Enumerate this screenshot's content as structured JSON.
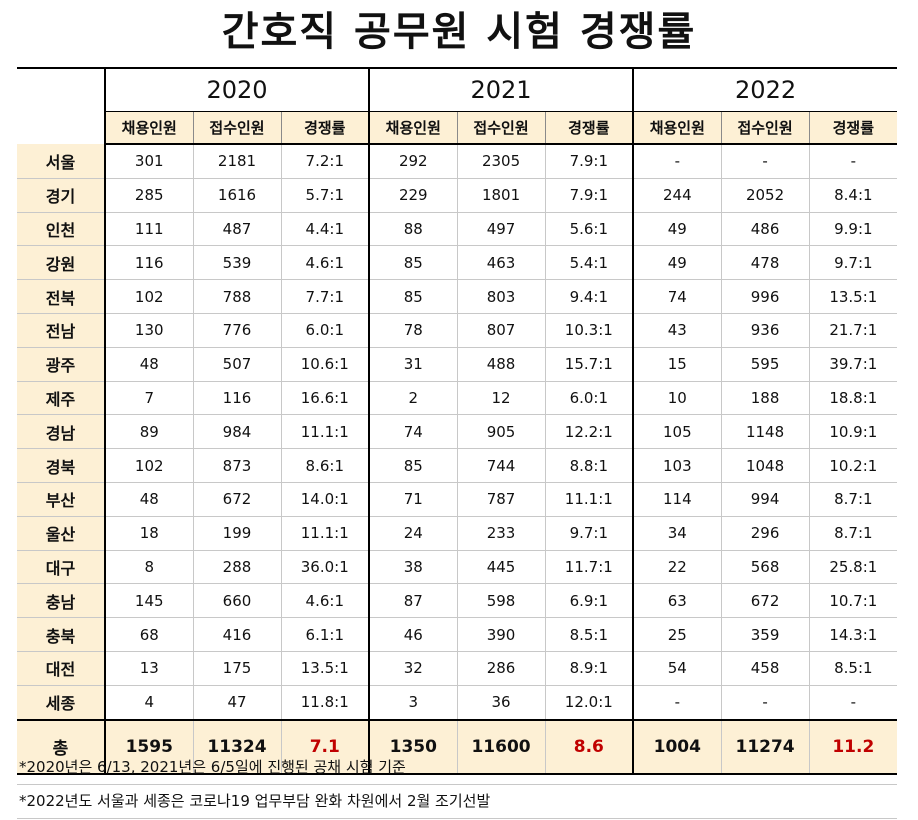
{
  "title": "간호직 공무원 시험 경쟁률",
  "years": [
    "2020",
    "2021",
    "2022"
  ],
  "columns": [
    "채용인원",
    "접수인원",
    "경쟁률"
  ],
  "rows": [
    {
      "region": "서울",
      "values": [
        "301",
        "2181",
        "7.2:1",
        "292",
        "2305",
        "7.9:1",
        "-",
        "-",
        "-"
      ]
    },
    {
      "region": "경기",
      "values": [
        "285",
        "1616",
        "5.7:1",
        "229",
        "1801",
        "7.9:1",
        "244",
        "2052",
        "8.4:1"
      ]
    },
    {
      "region": "인천",
      "values": [
        "111",
        "487",
        "4.4:1",
        "88",
        "497",
        "5.6:1",
        "49",
        "486",
        "9.9:1"
      ]
    },
    {
      "region": "강원",
      "values": [
        "116",
        "539",
        "4.6:1",
        "85",
        "463",
        "5.4:1",
        "49",
        "478",
        "9.7:1"
      ]
    },
    {
      "region": "전북",
      "values": [
        "102",
        "788",
        "7.7:1",
        "85",
        "803",
        "9.4:1",
        "74",
        "996",
        "13.5:1"
      ]
    },
    {
      "region": "전남",
      "values": [
        "130",
        "776",
        "6.0:1",
        "78",
        "807",
        "10.3:1",
        "43",
        "936",
        "21.7:1"
      ]
    },
    {
      "region": "광주",
      "values": [
        "48",
        "507",
        "10.6:1",
        "31",
        "488",
        "15.7:1",
        "15",
        "595",
        "39.7:1"
      ]
    },
    {
      "region": "제주",
      "values": [
        "7",
        "116",
        "16.6:1",
        "2",
        "12",
        "6.0:1",
        "10",
        "188",
        "18.8:1"
      ]
    },
    {
      "region": "경남",
      "values": [
        "89",
        "984",
        "11.1:1",
        "74",
        "905",
        "12.2:1",
        "105",
        "1148",
        "10.9:1"
      ]
    },
    {
      "region": "경북",
      "values": [
        "102",
        "873",
        "8.6:1",
        "85",
        "744",
        "8.8:1",
        "103",
        "1048",
        "10.2:1"
      ]
    },
    {
      "region": "부산",
      "values": [
        "48",
        "672",
        "14.0:1",
        "71",
        "787",
        "11.1:1",
        "114",
        "994",
        "8.7:1"
      ]
    },
    {
      "region": "울산",
      "values": [
        "18",
        "199",
        "11.1:1",
        "24",
        "233",
        "9.7:1",
        "34",
        "296",
        "8.7:1"
      ]
    },
    {
      "region": "대구",
      "values": [
        "8",
        "288",
        "36.0:1",
        "38",
        "445",
        "11.7:1",
        "22",
        "568",
        "25.8:1"
      ]
    },
    {
      "region": "충남",
      "values": [
        "145",
        "660",
        "4.6:1",
        "87",
        "598",
        "6.9:1",
        "63",
        "672",
        "10.7:1"
      ]
    },
    {
      "region": "충북",
      "values": [
        "68",
        "416",
        "6.1:1",
        "46",
        "390",
        "8.5:1",
        "25",
        "359",
        "14.3:1"
      ]
    },
    {
      "region": "대전",
      "values": [
        "13",
        "175",
        "13.5:1",
        "32",
        "286",
        "8.9:1",
        "54",
        "458",
        "8.5:1"
      ]
    },
    {
      "region": "세종",
      "values": [
        "4",
        "47",
        "11.8:1",
        "3",
        "36",
        "12.0:1",
        "-",
        "-",
        "-"
      ]
    }
  ],
  "total": {
    "label": "총",
    "values": [
      "1595",
      "11324",
      "7.1",
      "1350",
      "11600",
      "8.6",
      "1004",
      "11274",
      "11.2"
    ]
  },
  "notes": [
    "*2020년은 6/13, 2021년은 6/5일에 진행된 공채 시험 기준",
    "*2022년도 서울과 세종은 코로나19 업무부담 완화 차원에서 2월 조기선발"
  ],
  "colors": {
    "header_bg": "#fdf0d5",
    "ratio_highlight": "#c00000"
  }
}
